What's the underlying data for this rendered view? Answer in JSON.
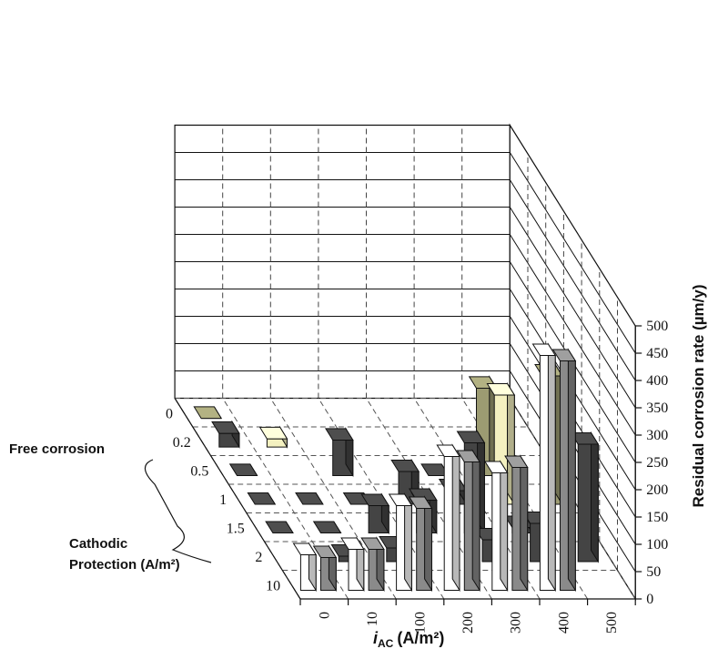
{
  "chart_data": {
    "type": "bar",
    "zlabel": "Residual corrosion rate (µm/y)",
    "zlim": [
      0,
      500
    ],
    "z_ticks": [
      "0",
      "50",
      "100",
      "150",
      "200",
      "250",
      "300",
      "350",
      "400",
      "450",
      "500"
    ],
    "x_label_main": "i",
    "x_label_sub": "AC",
    "x_label_unit": "(A/m²)",
    "x_categories": [
      "0",
      "10",
      "100",
      "200",
      "300",
      "400",
      "500"
    ],
    "depth_title_1": "Free corrosion",
    "depth_title_2": "Cathodic",
    "depth_title_3": "Protection (A/m²)",
    "depth_categories": [
      "0",
      "0.2",
      "0.5",
      "1",
      "1.5",
      "2",
      "10"
    ],
    "bar_colors": {
      "white": "#ffffff",
      "gray": "#8a8a8a",
      "dark": "#444444",
      "yellow": "#f4f1c0",
      "olive": "#9c9b72"
    },
    "bars": [
      {
        "row": "0",
        "col": "0",
        "value": 65,
        "color": "white"
      },
      {
        "row": "0",
        "col": "0",
        "value": 60,
        "color": "gray"
      },
      {
        "row": "0",
        "col": "10",
        "value": 75,
        "color": "white"
      },
      {
        "row": "0",
        "col": "10",
        "value": 75,
        "color": "gray"
      },
      {
        "row": "0",
        "col": "100",
        "value": 155,
        "color": "white"
      },
      {
        "row": "0",
        "col": "100",
        "value": 150,
        "color": "gray"
      },
      {
        "row": "0",
        "col": "200",
        "value": 245,
        "color": "white"
      },
      {
        "row": "0",
        "col": "200",
        "value": 235,
        "color": "gray"
      },
      {
        "row": "0",
        "col": "300",
        "value": 215,
        "color": "white"
      },
      {
        "row": "0",
        "col": "300",
        "value": 225,
        "color": "gray"
      },
      {
        "row": "0",
        "col": "400",
        "value": 430,
        "color": "white"
      },
      {
        "row": "0",
        "col": "400",
        "value": 420,
        "color": "gray"
      },
      {
        "row": "0.2",
        "col": "10",
        "value": 10,
        "color": "dark"
      },
      {
        "row": "0.2",
        "col": "100",
        "value": 25,
        "color": "dark"
      },
      {
        "row": "0.2",
        "col": "300",
        "value": 40,
        "color": "dark"
      },
      {
        "row": "0.2",
        "col": "400",
        "value": 70,
        "color": "dark"
      },
      {
        "row": "0.2",
        "col": "500",
        "value": 215,
        "color": "dark"
      },
      {
        "row": "0.5",
        "col": "0",
        "value": 0,
        "color": "dark"
      },
      {
        "row": "0.5",
        "col": "10",
        "value": 0,
        "color": "dark"
      },
      {
        "row": "0.5",
        "col": "100",
        "value": 50,
        "color": "dark"
      },
      {
        "row": "0.5",
        "col": "200",
        "value": 60,
        "color": "dark"
      },
      {
        "row": "0.5",
        "col": "300",
        "value": 165,
        "color": "dark"
      },
      {
        "row": "0.5",
        "col": "400",
        "value": 10,
        "color": "dark"
      },
      {
        "row": "1",
        "col": "0",
        "value": 0,
        "color": "dark"
      },
      {
        "row": "1",
        "col": "10",
        "value": 0,
        "color": "dark"
      },
      {
        "row": "1",
        "col": "100",
        "value": 0,
        "color": "dark"
      },
      {
        "row": "1",
        "col": "200",
        "value": 60,
        "color": "dark"
      },
      {
        "row": "1",
        "col": "300",
        "value": 25,
        "color": "dark"
      },
      {
        "row": "1",
        "col": "400",
        "value": 200,
        "color": "yellow"
      },
      {
        "row": "1",
        "col": "500",
        "value": 235,
        "color": "olive"
      },
      {
        "row": "1.5",
        "col": "0",
        "value": 0,
        "color": "dark"
      },
      {
        "row": "1.5",
        "col": "100",
        "value": 65,
        "color": "dark"
      },
      {
        "row": "1.5",
        "col": "300",
        "value": 0,
        "color": "dark"
      },
      {
        "row": "1.5",
        "col": "400",
        "value": 160,
        "color": "olive"
      },
      {
        "row": "2",
        "col": "0",
        "value": 25,
        "color": "dark"
      },
      {
        "row": "2",
        "col": "10",
        "value": 15,
        "color": "yellow"
      },
      {
        "row": "10",
        "col": "0",
        "value": 0,
        "color": "olive"
      }
    ],
    "grid": true,
    "legend": "none"
  }
}
